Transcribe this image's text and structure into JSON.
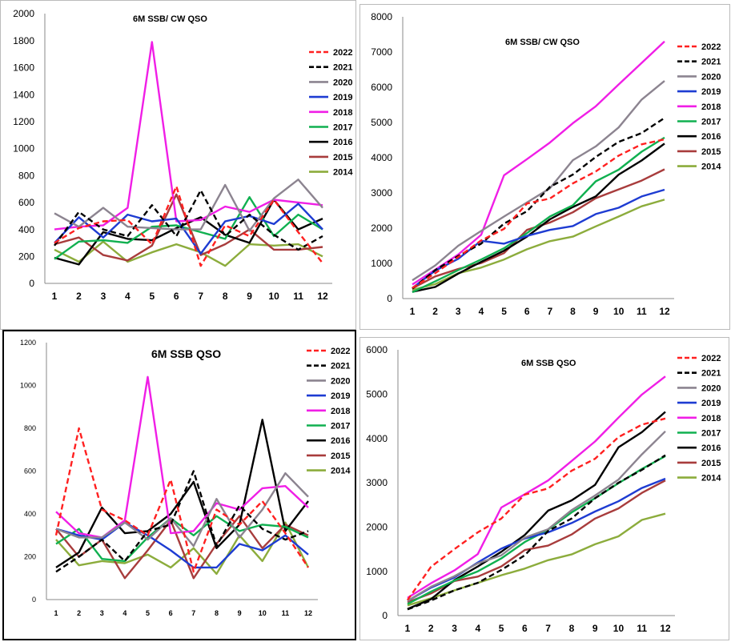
{
  "colors": {
    "2022": "#ff2020",
    "2021": "#000000",
    "2020": "#8c8490",
    "2019": "#1e3cd2",
    "2018": "#f01ee6",
    "2017": "#10b050",
    "2016": "#000000",
    "2015": "#a83c3c",
    "2014": "#8cac3c"
  },
  "chart_data": [
    {
      "type": "line",
      "title": "6M SSB/ CW QSO",
      "x": [
        1,
        2,
        3,
        4,
        5,
        6,
        7,
        8,
        9,
        10,
        11,
        12
      ],
      "ylim": [
        0,
        2000
      ],
      "yticks": [
        "0",
        "200",
        "400",
        "600",
        "800",
        "1000",
        "1200",
        "1400",
        "1600",
        "1800",
        "2000"
      ],
      "grid": false,
      "legend": "right",
      "series": [
        {
          "name": "2022",
          "dash": true,
          "values": [
            300,
            410,
            460,
            470,
            290,
            720,
            130,
            430,
            350,
            620,
            380,
            150
          ]
        },
        {
          "name": "2021",
          "dash": true,
          "values": [
            280,
            530,
            400,
            350,
            580,
            350,
            690,
            350,
            510,
            360,
            250,
            350
          ]
        },
        {
          "name": "2020",
          "dash": false,
          "values": [
            520,
            420,
            560,
            420,
            410,
            400,
            400,
            730,
            390,
            630,
            770,
            560
          ]
        },
        {
          "name": "2019",
          "dash": false,
          "values": [
            300,
            490,
            340,
            510,
            460,
            480,
            220,
            460,
            500,
            440,
            590,
            400
          ]
        },
        {
          "name": "2018",
          "dash": false,
          "values": [
            400,
            420,
            430,
            560,
            1790,
            460,
            470,
            570,
            530,
            620,
            600,
            580
          ]
        },
        {
          "name": "2017",
          "dash": false,
          "values": [
            180,
            310,
            320,
            300,
            420,
            430,
            380,
            330,
            640,
            350,
            510,
            400
          ]
        },
        {
          "name": "2016",
          "dash": false,
          "values": [
            190,
            140,
            380,
            330,
            320,
            410,
            490,
            360,
            300,
            620,
            400,
            480
          ]
        },
        {
          "name": "2015",
          "dash": false,
          "values": [
            290,
            340,
            210,
            170,
            280,
            660,
            210,
            290,
            400,
            250,
            250,
            270
          ]
        },
        {
          "name": "2014",
          "dash": false,
          "values": [
            250,
            160,
            310,
            160,
            230,
            290,
            230,
            130,
            290,
            280,
            290,
            200
          ]
        }
      ]
    },
    {
      "type": "line",
      "title": "6M SSB/ CW QSO",
      "x": [
        1,
        2,
        3,
        4,
        5,
        6,
        7,
        8,
        9,
        10,
        11,
        12
      ],
      "ylim": [
        0,
        8000
      ],
      "yticks": [
        "0",
        "1000",
        "2000",
        "3000",
        "4000",
        "5000",
        "6000",
        "7000",
        "8000"
      ],
      "grid": false,
      "legend": "right",
      "series": [
        {
          "name": "2022",
          "dash": true,
          "values": [
            300,
            720,
            1180,
            1650,
            1980,
            2700,
            2840,
            3270,
            3610,
            4060,
            4380,
            4520
          ]
        },
        {
          "name": "2021",
          "dash": true,
          "values": [
            280,
            810,
            1210,
            1560,
            2130,
            2480,
            3170,
            3520,
            4020,
            4450,
            4700,
            5130
          ]
        },
        {
          "name": "2020",
          "dash": false,
          "values": [
            520,
            940,
            1500,
            1920,
            2330,
            2730,
            3130,
            3930,
            4320,
            4860,
            5650,
            6180
          ]
        },
        {
          "name": "2019",
          "dash": false,
          "values": [
            300,
            790,
            1130,
            1640,
            1560,
            1780,
            1950,
            2060,
            2400,
            2580,
            2900,
            3090
          ]
        },
        {
          "name": "2018",
          "dash": false,
          "values": [
            400,
            820,
            1250,
            1810,
            3500,
            3960,
            4430,
            4980,
            5460,
            6080,
            6690,
            7300
          ]
        },
        {
          "name": "2017",
          "dash": false,
          "values": [
            180,
            490,
            810,
            1110,
            1430,
            1860,
            2330,
            2650,
            3330,
            3660,
            4170,
            4570
          ]
        },
        {
          "name": "2016",
          "dash": false,
          "values": [
            190,
            330,
            710,
            1040,
            1360,
            1760,
            2250,
            2600,
            2900,
            3520,
            3920,
            4400
          ]
        },
        {
          "name": "2015",
          "dash": false,
          "values": [
            290,
            630,
            840,
            1010,
            1290,
            1950,
            2160,
            2450,
            2850,
            3100,
            3350,
            3670
          ]
        },
        {
          "name": "2014",
          "dash": false,
          "values": [
            250,
            410,
            720,
            880,
            1110,
            1400,
            1630,
            1760,
            2050,
            2330,
            2620,
            2810
          ]
        }
      ]
    },
    {
      "type": "line",
      "title": "6M SSB QSO",
      "x": [
        1,
        2,
        3,
        4,
        5,
        6,
        7,
        8,
        9,
        10,
        11,
        12
      ],
      "ylim": [
        0,
        1200
      ],
      "yticks": [
        "0",
        "200",
        "400",
        "600",
        "800",
        "1000",
        "1200"
      ],
      "grid": false,
      "legend": "right",
      "series": [
        {
          "name": "2022",
          "dash": true,
          "values": [
            300,
            800,
            420,
            370,
            300,
            560,
            130,
            420,
            350,
            460,
            310,
            150
          ]
        },
        {
          "name": "2021",
          "dash": true,
          "values": [
            130,
            200,
            280,
            180,
            320,
            350,
            600,
            250,
            440,
            330,
            280,
            320
          ]
        },
        {
          "name": "2020",
          "dash": false,
          "values": [
            330,
            290,
            290,
            360,
            280,
            380,
            250,
            470,
            290,
            420,
            590,
            480
          ]
        },
        {
          "name": "2019",
          "dash": false,
          "values": [
            330,
            300,
            280,
            360,
            300,
            230,
            150,
            150,
            260,
            230,
            300,
            210
          ]
        },
        {
          "name": "2018",
          "dash": false,
          "values": [
            410,
            310,
            290,
            370,
            1040,
            310,
            320,
            450,
            420,
            520,
            530,
            430
          ]
        },
        {
          "name": "2017",
          "dash": false,
          "values": [
            260,
            330,
            190,
            180,
            290,
            380,
            300,
            390,
            320,
            350,
            340,
            290
          ]
        },
        {
          "name": "2016",
          "dash": false,
          "values": [
            150,
            220,
            430,
            310,
            320,
            400,
            550,
            240,
            350,
            840,
            320,
            460
          ]
        },
        {
          "name": "2015",
          "dash": false,
          "values": [
            330,
            200,
            280,
            100,
            230,
            370,
            100,
            260,
            390,
            240,
            350,
            300
          ]
        },
        {
          "name": "2014",
          "dash": false,
          "values": [
            280,
            160,
            180,
            170,
            210,
            150,
            240,
            120,
            300,
            180,
            360,
            150
          ]
        }
      ]
    },
    {
      "type": "line",
      "title": "6M SSB QSO",
      "x": [
        1,
        2,
        3,
        4,
        5,
        6,
        7,
        8,
        9,
        10,
        11,
        12
      ],
      "ylim": [
        0,
        6000
      ],
      "yticks": [
        "0",
        "1000",
        "2000",
        "3000",
        "4000",
        "5000",
        "6000"
      ],
      "grid": false,
      "legend": "right",
      "series": [
        {
          "name": "2022",
          "dash": true,
          "values": [
            350,
            1100,
            1500,
            1880,
            2190,
            2730,
            2870,
            3270,
            3540,
            4030,
            4310,
            4450
          ]
        },
        {
          "name": "2021",
          "dash": true,
          "values": [
            140,
            340,
            570,
            740,
            1030,
            1360,
            1910,
            2190,
            2650,
            3000,
            3290,
            3620
          ]
        },
        {
          "name": "2020",
          "dash": false,
          "values": [
            330,
            650,
            890,
            1180,
            1360,
            1760,
            1950,
            2380,
            2710,
            3070,
            3640,
            4160
          ]
        },
        {
          "name": "2019",
          "dash": false,
          "values": [
            330,
            630,
            860,
            1200,
            1510,
            1740,
            1880,
            2090,
            2350,
            2580,
            2880,
            3090
          ]
        },
        {
          "name": "2018",
          "dash": false,
          "values": [
            400,
            730,
            1020,
            1390,
            2440,
            2740,
            3050,
            3490,
            3930,
            4470,
            4990,
            5400
          ]
        },
        {
          "name": "2017",
          "dash": false,
          "values": [
            260,
            540,
            790,
            1000,
            1290,
            1660,
            1940,
            2330,
            2650,
            2990,
            3310,
            3600
          ]
        },
        {
          "name": "2016",
          "dash": false,
          "values": [
            150,
            370,
            800,
            1110,
            1440,
            1820,
            2370,
            2600,
            2950,
            3800,
            4140,
            4600
          ]
        },
        {
          "name": "2015",
          "dash": false,
          "values": [
            300,
            500,
            780,
            880,
            1110,
            1480,
            1580,
            1830,
            2190,
            2420,
            2770,
            3050
          ]
        },
        {
          "name": "2014",
          "dash": false,
          "values": [
            230,
            390,
            570,
            740,
            910,
            1060,
            1250,
            1380,
            1610,
            1790,
            2160,
            2300
          ]
        }
      ]
    }
  ]
}
